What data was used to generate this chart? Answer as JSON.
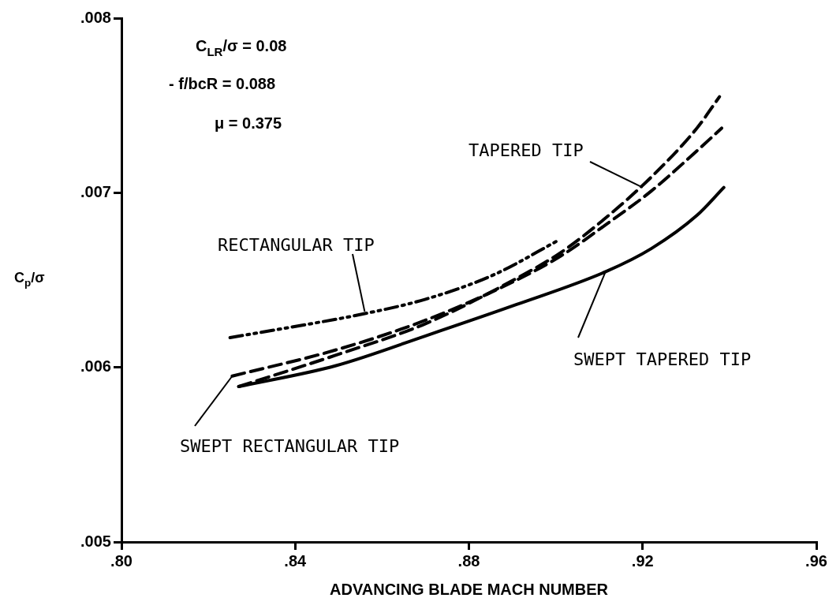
{
  "chart_data": {
    "type": "line",
    "xlabel": "ADVANCING BLADE MACH NUMBER",
    "ylabel": "C$_{p}$/σ",
    "annotations": [
      "C$_{LR}$/σ = 0.08",
      "- f/bcR = 0.088",
      "μ = 0.375",
      {
        "text": "RECTANGULAR TIP",
        "x": 0.856,
        "y": 0.00632
      },
      {
        "text": "TAPERED TIP",
        "x": 0.92,
        "y": 0.00703
      },
      {
        "text": "SWEPT TAPERED TIP",
        "x": 0.9115,
        "y": 0.00655
      },
      {
        "text": "SWEPT RECTANGULAR TIP",
        "x": 0.8255,
        "y": 0.00595
      }
    ],
    "xlim": [
      0.8,
      0.96
    ],
    "xticks": [
      {
        "value": 0.8,
        "label": ".80"
      },
      {
        "value": 0.84,
        "label": ".84"
      },
      {
        "value": 0.88,
        "label": ".88"
      },
      {
        "value": 0.92,
        "label": ".92"
      },
      {
        "value": 0.96,
        "label": ".96"
      }
    ],
    "ylim": [
      0.005,
      0.008
    ],
    "yticks": [
      {
        "value": 0.005,
        "label": ".005"
      },
      {
        "value": 0.006,
        "label": ".006"
      },
      {
        "value": 0.007,
        "label": ".007"
      },
      {
        "value": 0.008,
        "label": ".008"
      }
    ],
    "grid": false,
    "legend": false,
    "marker": "none",
    "series": [
      {
        "color": "#000000",
        "line_style": "dotted",
        "x": [
          0.825,
          0.839,
          0.8545,
          0.87,
          0.8857,
          0.9008
        ],
        "values": [
          0.00617,
          0.00623,
          0.0063,
          0.00639,
          0.00653,
          0.00673
        ]
      },
      {
        "color": "#000000",
        "line_style": "dashed",
        "x": [
          0.827,
          0.8494,
          0.87,
          0.891,
          0.9013,
          0.9117,
          0.922,
          0.9325,
          0.9377
        ],
        "values": [
          0.00589,
          0.00607,
          0.00625,
          0.00651,
          0.00666,
          0.00686,
          0.00709,
          0.00737,
          0.00755
        ]
      },
      {
        "color": "#000000",
        "line_style": "solid",
        "x": [
          0.827,
          0.8494,
          0.87,
          0.891,
          0.9117,
          0.922,
          0.9325,
          0.9387
        ],
        "values": [
          0.00589,
          0.00601,
          0.00618,
          0.00636,
          0.00655,
          0.00668,
          0.00687,
          0.00703
        ]
      },
      {
        "color": "#000000",
        "line_style": "dashed",
        "x": [
          0.8255,
          0.8494,
          0.87,
          0.891,
          0.9013,
          0.9117,
          0.922,
          0.9325,
          0.9382
        ],
        "values": [
          0.00595,
          0.0061,
          0.00627,
          0.0065,
          0.00664,
          0.00682,
          0.00701,
          0.00724,
          0.00737
        ]
      }
    ]
  }
}
